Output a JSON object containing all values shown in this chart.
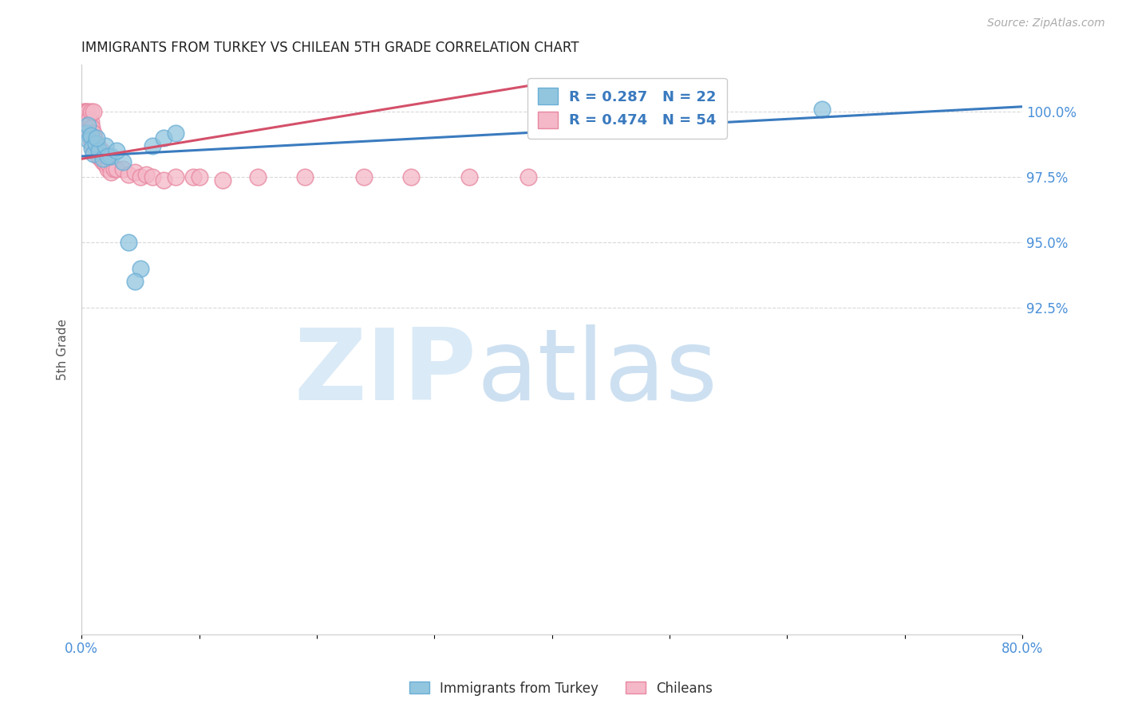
{
  "title": "IMMIGRANTS FROM TURKEY VS CHILEAN 5TH GRADE CORRELATION CHART",
  "source": "Source: ZipAtlas.com",
  "ylabel": "5th Grade",
  "xlim": [
    0.0,
    80.0
  ],
  "ylim": [
    80.0,
    101.8
  ],
  "yticks": [
    92.5,
    95.0,
    97.5,
    100.0
  ],
  "ytick_labels": [
    "92.5%",
    "95.0%",
    "97.5%",
    "100.0%"
  ],
  "xticks": [
    0.0,
    10.0,
    20.0,
    30.0,
    40.0,
    50.0,
    60.0,
    70.0,
    80.0
  ],
  "xtick_labels": [
    "0.0%",
    "",
    "",
    "",
    "",
    "",
    "",
    "",
    "80.0%"
  ],
  "blue_color": "#92c5de",
  "pink_color": "#f4b8c8",
  "blue_edge": "#6aaed6",
  "pink_edge": "#e887a0",
  "trend_blue": "#3a7bbf",
  "trend_pink": "#d4506a",
  "legend_R_blue": "R = 0.287",
  "legend_N_blue": "N = 22",
  "legend_R_pink": "R = 0.474",
  "legend_N_pink": "N = 54",
  "blue_trend_x": [
    0.0,
    80.0
  ],
  "blue_trend_y": [
    98.3,
    100.2
  ],
  "pink_trend_x": [
    0.0,
    38.0
  ],
  "pink_trend_y": [
    98.2,
    101.0
  ],
  "blue_points_x": [
    0.4,
    0.5,
    0.6,
    0.8,
    0.9,
    1.0,
    1.2,
    1.5,
    1.8,
    2.0,
    2.5,
    3.5,
    4.0,
    1.3,
    2.2,
    5.0,
    6.0,
    7.0,
    8.0,
    63.0,
    3.0,
    4.5
  ],
  "blue_points_y": [
    99.2,
    99.5,
    98.9,
    99.1,
    98.6,
    98.4,
    98.8,
    98.5,
    98.2,
    98.7,
    98.3,
    98.1,
    95.0,
    99.0,
    98.3,
    94.0,
    98.7,
    99.0,
    99.2,
    100.1,
    98.5,
    93.5
  ],
  "pink_points_x": [
    0.2,
    0.2,
    0.3,
    0.3,
    0.4,
    0.4,
    0.5,
    0.5,
    0.5,
    0.6,
    0.6,
    0.7,
    0.7,
    0.8,
    0.8,
    0.8,
    0.9,
    0.9,
    1.0,
    1.0,
    1.0,
    1.1,
    1.2,
    1.3,
    1.4,
    1.5,
    1.6,
    1.7,
    1.8,
    1.9,
    2.0,
    2.1,
    2.2,
    2.3,
    2.5,
    2.8,
    3.0,
    3.5,
    4.0,
    4.5,
    5.0,
    5.5,
    6.0,
    7.0,
    8.0,
    9.5,
    12.0,
    15.0,
    19.0,
    24.0,
    28.0,
    33.0,
    38.0,
    10.0
  ],
  "pink_points_y": [
    100.0,
    99.7,
    99.8,
    100.0,
    99.5,
    100.0,
    99.3,
    99.8,
    100.0,
    99.2,
    99.7,
    99.0,
    99.5,
    99.3,
    99.6,
    100.0,
    98.8,
    99.4,
    98.5,
    99.2,
    100.0,
    99.0,
    98.5,
    98.8,
    98.3,
    98.6,
    98.2,
    98.5,
    98.1,
    98.3,
    98.0,
    98.2,
    97.8,
    98.0,
    97.7,
    97.8,
    97.8,
    97.8,
    97.6,
    97.7,
    97.5,
    97.6,
    97.5,
    97.4,
    97.5,
    97.5,
    97.4,
    97.5,
    97.5,
    97.5,
    97.5,
    97.5,
    97.5,
    97.5
  ]
}
